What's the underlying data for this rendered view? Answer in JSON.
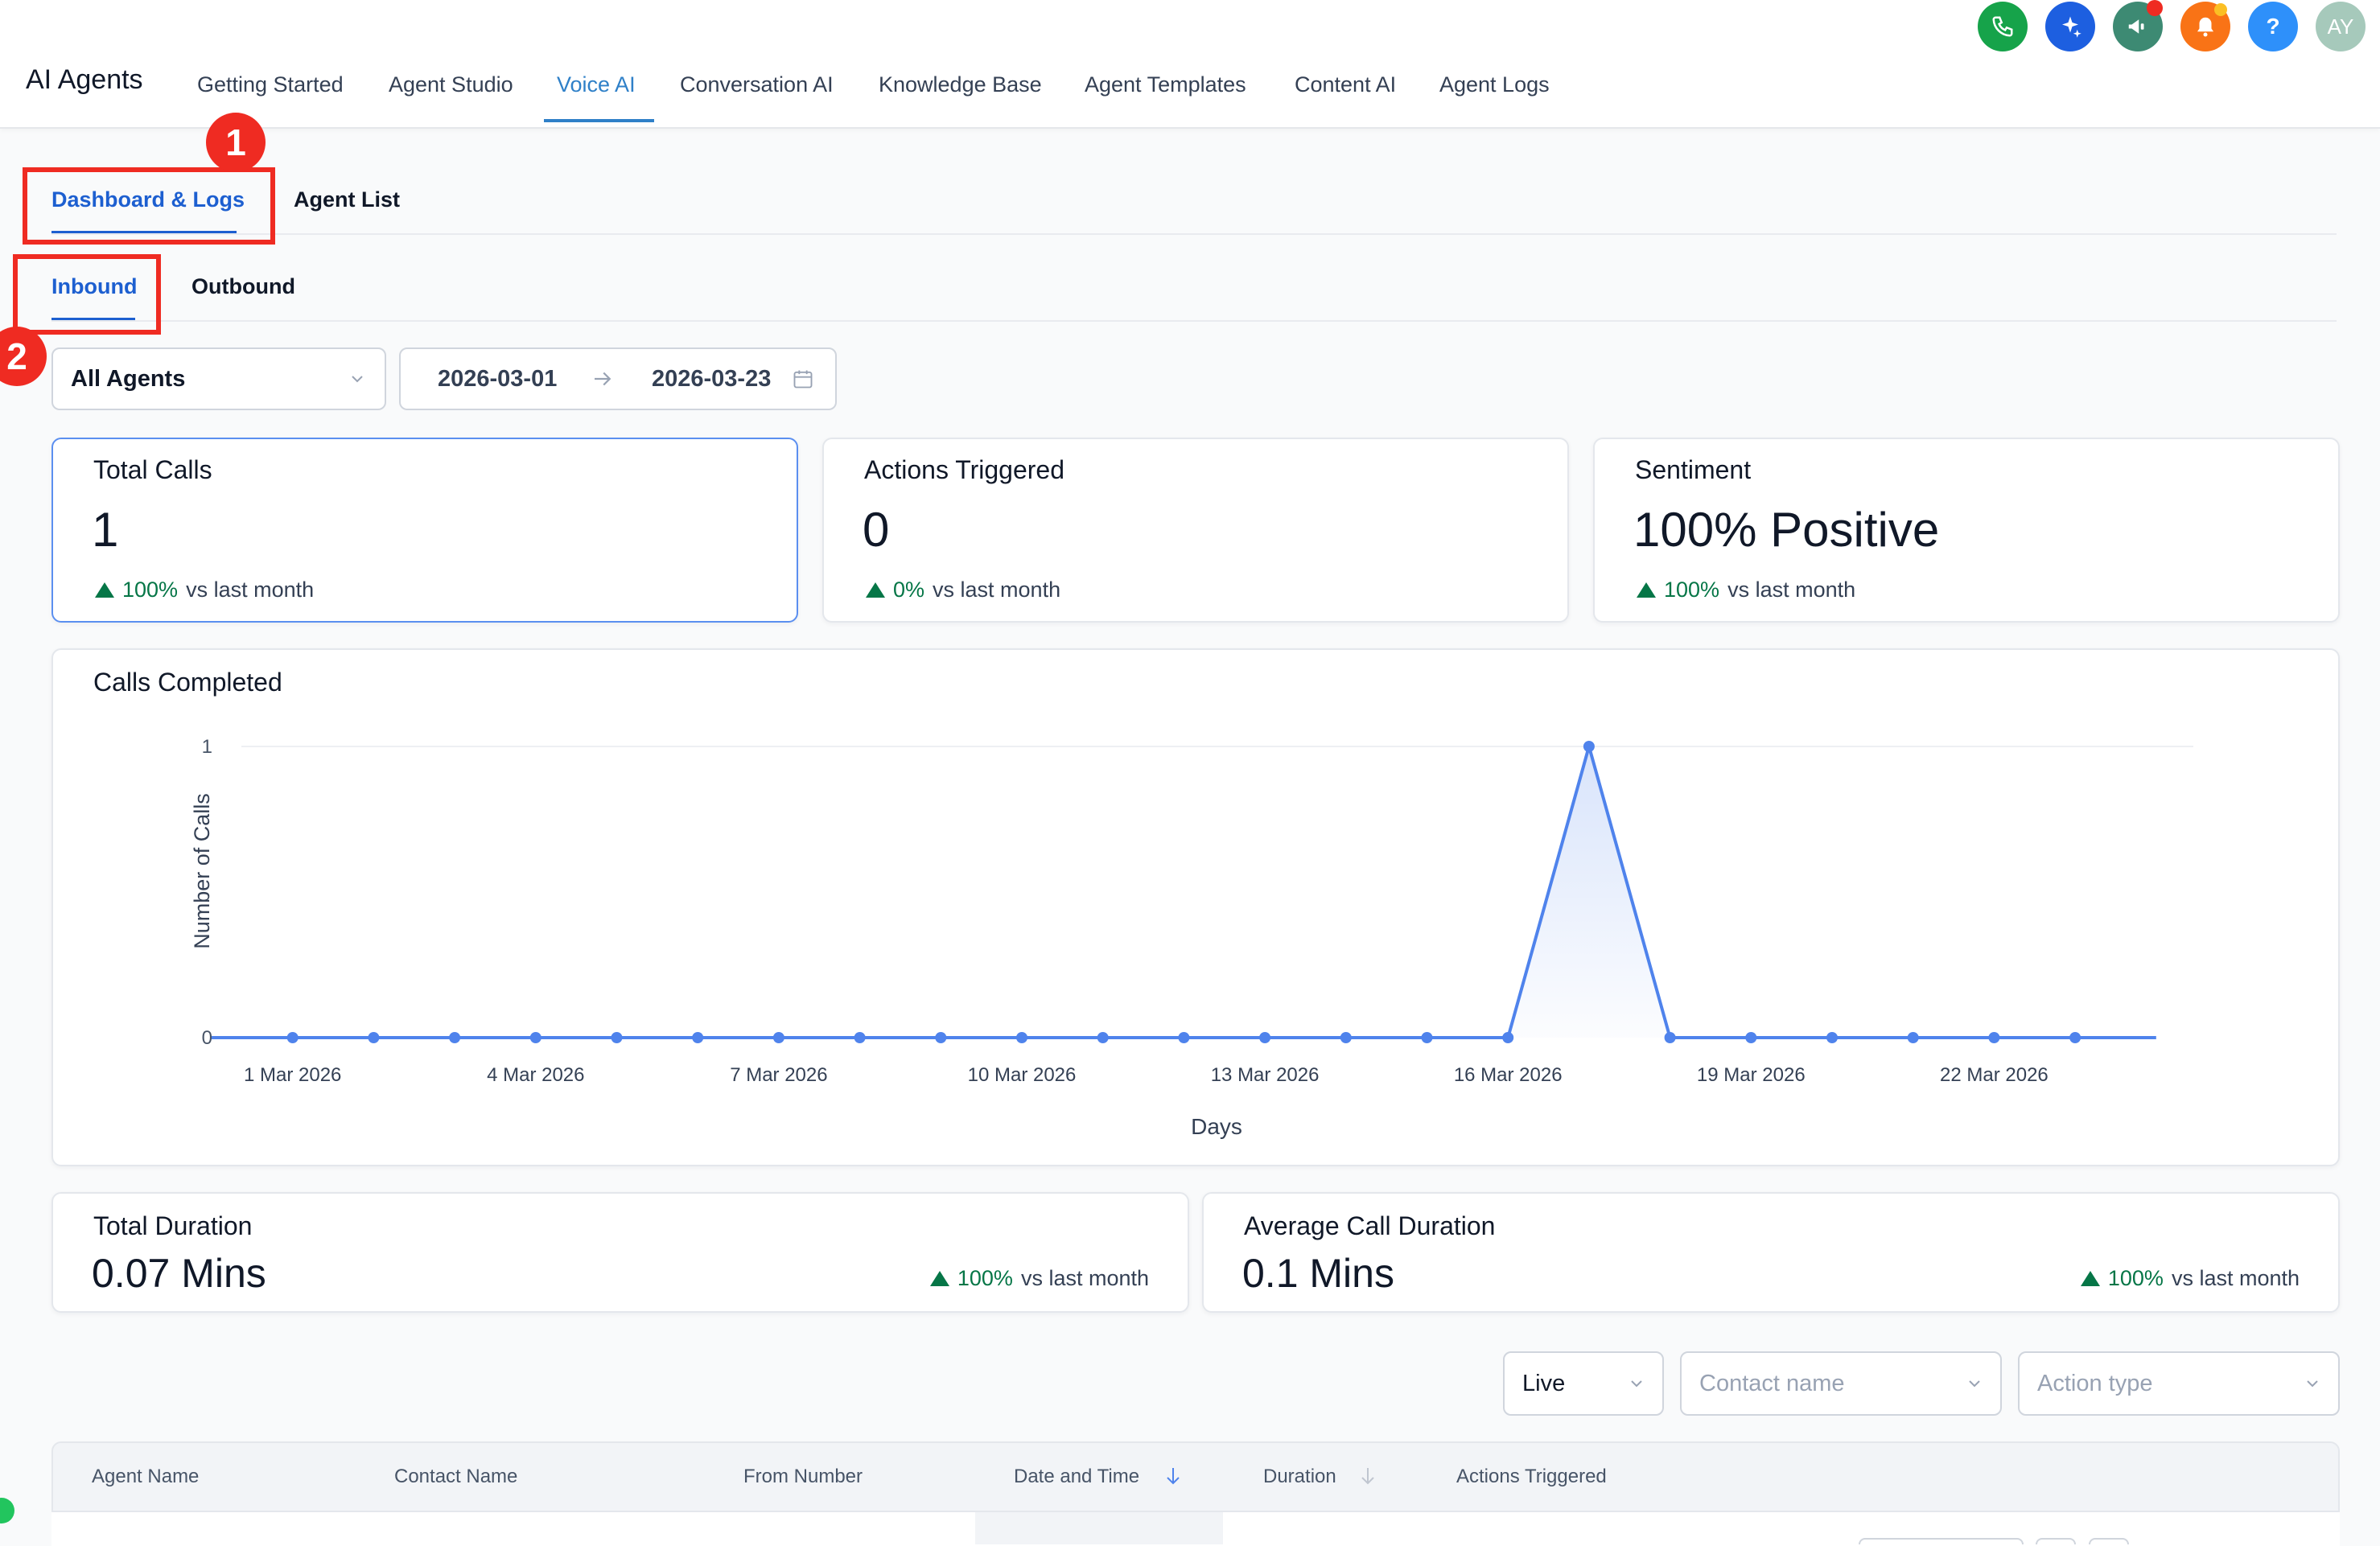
{
  "app": {
    "title": "AI Agents",
    "avatar_initials": "AY"
  },
  "nav": {
    "tabs": [
      {
        "label": "Getting Started"
      },
      {
        "label": "Agent Studio"
      },
      {
        "label": "Voice AI",
        "active": true
      },
      {
        "label": "Conversation AI"
      },
      {
        "label": "Knowledge Base"
      },
      {
        "label": "Agent Templates"
      },
      {
        "label": "Content AI"
      },
      {
        "label": "Agent Logs"
      }
    ]
  },
  "header_icons": [
    {
      "icon": "phone-icon",
      "color": "#16a34a"
    },
    {
      "icon": "sparkle-icon",
      "color": "#1d5fe0"
    },
    {
      "icon": "megaphone-icon",
      "color": "#3d8a73"
    },
    {
      "icon": "bell-icon",
      "color": "#f97316"
    },
    {
      "icon": "help-icon",
      "color": "#2e90fa"
    },
    {
      "icon": "avatar",
      "color": "#a6c9bb"
    }
  ],
  "page_tabs": [
    {
      "label": "Dashboard & Logs",
      "active": true
    },
    {
      "label": "Agent List"
    }
  ],
  "direction_tabs": [
    {
      "label": "Inbound",
      "active": true
    },
    {
      "label": "Outbound"
    }
  ],
  "annotations": {
    "badge_1": "1",
    "badge_2": "2"
  },
  "filters": {
    "agent": "All Agents",
    "date_start": "2026-03-01",
    "date_end": "2026-03-23"
  },
  "stats": {
    "total_calls": {
      "title": "Total Calls",
      "value": "1",
      "change": "100%",
      "suffix": "vs last month"
    },
    "actions_triggered": {
      "title": "Actions Triggered",
      "value": "0",
      "change": "0%",
      "suffix": "vs last month"
    },
    "sentiment": {
      "title": "Sentiment",
      "value": "100% Positive",
      "change": "100%",
      "suffix": "vs last month"
    },
    "total_duration": {
      "title": "Total Duration",
      "value": "0.07 Mins",
      "change": "100%",
      "suffix": "vs last month"
    },
    "avg_duration": {
      "title": "Average Call Duration",
      "value": "0.1 Mins",
      "change": "100%",
      "suffix": "vs last month"
    }
  },
  "chart_data": {
    "type": "area",
    "title": "Calls Completed",
    "xlabel": "Days",
    "ylabel": "Number of Calls",
    "ylim": [
      0,
      1
    ],
    "yticks": [
      "0",
      "1"
    ],
    "x": [
      "28 Feb 2026",
      "1 Mar 2026",
      "2 Mar 2026",
      "3 Mar 2026",
      "4 Mar 2026",
      "5 Mar 2026",
      "6 Mar 2026",
      "7 Mar 2026",
      "8 Mar 2026",
      "9 Mar 2026",
      "10 Mar 2026",
      "11 Mar 2026",
      "12 Mar 2026",
      "13 Mar 2026",
      "14 Mar 2026",
      "15 Mar 2026",
      "16 Mar 2026",
      "17 Mar 2026",
      "18 Mar 2026",
      "19 Mar 2026",
      "20 Mar 2026",
      "21 Mar 2026",
      "22 Mar 2026",
      "23 Mar 2026",
      "24 Mar 2026"
    ],
    "values": [
      0,
      0,
      0,
      0,
      0,
      0,
      0,
      0,
      0,
      0,
      0,
      0,
      0,
      0,
      0,
      0,
      0,
      1,
      0,
      0,
      0,
      0,
      0,
      0,
      0
    ],
    "marker_start": 1,
    "marker_end": 23,
    "xtick_labels": [
      "1 Mar 2026",
      "4 Mar 2026",
      "7 Mar 2026",
      "10 Mar 2026",
      "13 Mar 2026",
      "16 Mar 2026",
      "19 Mar 2026",
      "22 Mar 2026"
    ],
    "xtick_index": [
      1,
      4,
      7,
      10,
      13,
      16,
      19,
      22
    ],
    "line_color": "#4f83ec",
    "grid": true
  },
  "log_filters": {
    "mode": "Live",
    "contact_placeholder": "Contact name",
    "action_placeholder": "Action type"
  },
  "table": {
    "columns": [
      "Agent Name",
      "Contact Name",
      "From Number",
      "Date and Time",
      "Duration",
      "Actions Triggered"
    ]
  }
}
